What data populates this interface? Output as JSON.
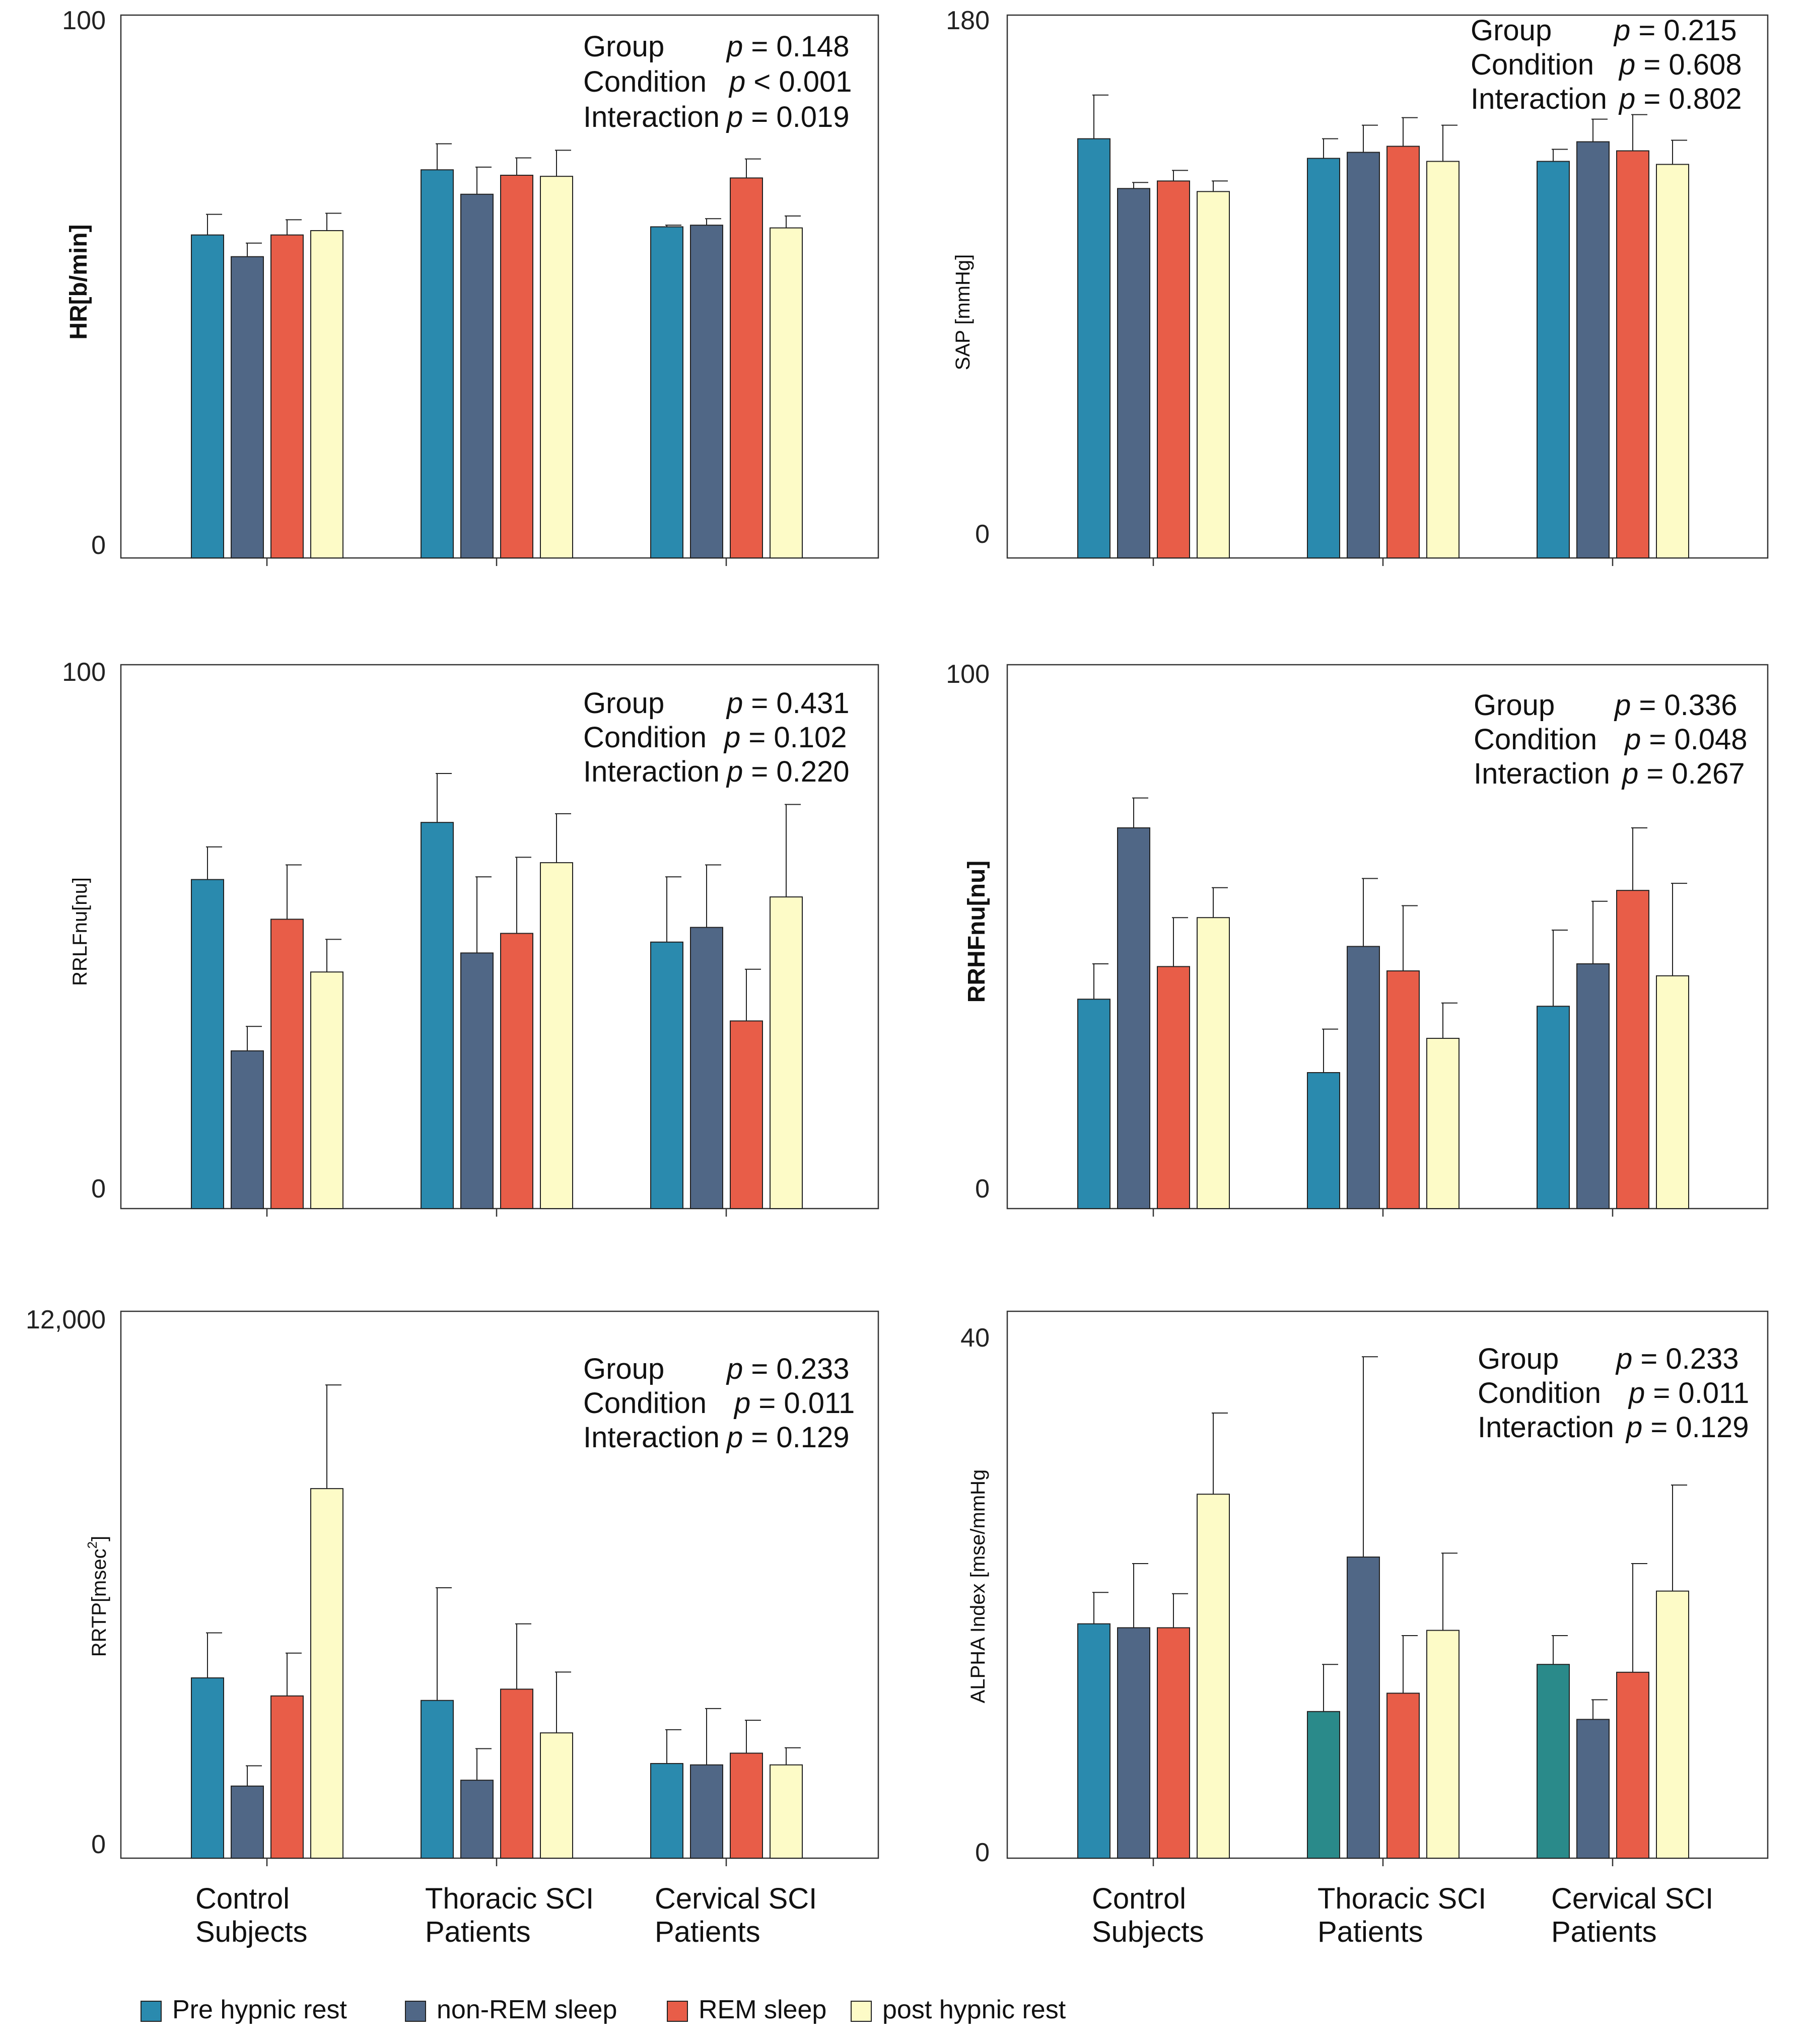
{
  "series_colors": {
    "Pre hypnic rest": "#2a8aae",
    "non-REM sleep": "#506786",
    "REM sleep": "#e85d48",
    "post hypnic rest": "#fdfbc7"
  },
  "alt_teal": "#2a8a8a",
  "legend": [
    "Pre hypnic rest",
    "non-REM sleep",
    "REM sleep",
    "post hypnic rest"
  ],
  "x_categories": [
    [
      "Control",
      "Subjects"
    ],
    [
      "Thoracic SCI",
      "Patients"
    ],
    [
      "Cervical SCI",
      "Patients"
    ]
  ],
  "chart_data": [
    {
      "type": "bar",
      "ylabel": "HR[b/min]",
      "ylabel_bold": true,
      "ylim": [
        0,
        100
      ],
      "tick_labels": [
        "100",
        "0"
      ],
      "stats": [
        [
          "Group",
          "p",
          " = 0.148"
        ],
        [
          "Condition",
          "p",
          " < 0.001"
        ],
        [
          "Interaction",
          "p",
          " = 0.019"
        ]
      ],
      "categories": [
        "Control Subjects",
        "Thoracic SCI Patients",
        "Cervical SCI Patients"
      ],
      "series": [
        {
          "name": "Pre hypnic rest",
          "values": [
            59.5,
            71.5,
            61.0
          ],
          "errors": [
            3.8,
            4.8,
            0.3
          ]
        },
        {
          "name": "non-REM sleep",
          "values": [
            55.5,
            67.0,
            61.3
          ],
          "errors": [
            2.5,
            5.0,
            1.2
          ]
        },
        {
          "name": "REM sleep",
          "values": [
            59.5,
            70.5,
            70.0
          ],
          "errors": [
            2.8,
            3.2,
            3.5
          ]
        },
        {
          "name": "post hypnic rest",
          "values": [
            60.3,
            70.3,
            60.8
          ],
          "errors": [
            3.2,
            4.8,
            2.2
          ]
        }
      ]
    },
    {
      "type": "bar",
      "ylabel": "SAP [mmHg]",
      "ylabel_bold": false,
      "ylim": [
        0,
        180
      ],
      "tick_labels": [
        "180",
        "0"
      ],
      "stats": [
        [
          "Group",
          "p",
          " = 0.215"
        ],
        [
          "Condition",
          "p",
          " = 0.608"
        ],
        [
          "Interaction",
          "p",
          " = 0.802"
        ]
      ],
      "categories": [
        "Control Subjects",
        "Thoracic SCI Patients",
        "Cervical SCI Patients"
      ],
      "series": [
        {
          "name": "Pre hypnic rest",
          "values": [
            139,
            132.5,
            131.5
          ],
          "errors": [
            14.5,
            6.5,
            4.0
          ]
        },
        {
          "name": "non-REM sleep",
          "values": [
            122.5,
            134.5,
            138.0
          ],
          "errors": [
            2.0,
            9.0,
            7.5
          ]
        },
        {
          "name": "REM sleep",
          "values": [
            125,
            136.5,
            135.0
          ],
          "errors": [
            3.5,
            9.5,
            12.0
          ]
        },
        {
          "name": "post hypnic rest",
          "values": [
            121.5,
            131.5,
            130.5
          ],
          "errors": [
            3.5,
            12.0,
            8.0
          ]
        }
      ]
    },
    {
      "type": "bar",
      "ylabel": "RRLFnu[nu]",
      "ylabel_bold": false,
      "ylim": [
        0,
        100
      ],
      "tick_labels": [
        "100",
        "0"
      ],
      "stats": [
        [
          "Group",
          "p",
          " = 0.431"
        ],
        [
          "Condition",
          "p",
          " = 0.102"
        ],
        [
          "Interaction",
          "p",
          " = 0.220"
        ]
      ],
      "categories": [
        "Control Subjects",
        "Thoracic SCI Patients",
        "Cervical SCI Patients"
      ],
      "series": [
        {
          "name": "Pre hypnic rest",
          "values": [
            60.5,
            71.0,
            49.0
          ],
          "errors": [
            6.0,
            9.0,
            12.0
          ]
        },
        {
          "name": "non-REM sleep",
          "values": [
            29.0,
            47.0,
            51.7
          ],
          "errors": [
            4.5,
            14.0,
            11.5
          ]
        },
        {
          "name": "REM sleep",
          "values": [
            53.2,
            50.6,
            34.5
          ],
          "errors": [
            10.0,
            14.0,
            9.5
          ]
        },
        {
          "name": "post hypnic rest",
          "values": [
            43.5,
            63.6,
            57.3
          ],
          "errors": [
            6.0,
            9.0,
            17.0
          ]
        }
      ]
    },
    {
      "type": "bar",
      "ylabel": "RRHFnu[nu]",
      "ylabel_bold": true,
      "ylim": [
        0,
        100
      ],
      "tick_labels": [
        "100",
        "0"
      ],
      "stats": [
        [
          "Group",
          "p",
          " = 0.336"
        ],
        [
          "Condition",
          "p",
          " = 0.048"
        ],
        [
          "Interaction",
          "p",
          " = 0.267"
        ]
      ],
      "categories": [
        "Control Subjects",
        "Thoracic SCI Patients",
        "Cervical SCI Patients"
      ],
      "series": [
        {
          "name": "Pre hypnic rest",
          "values": [
            38.5,
            25.0,
            37.2
          ],
          "errors": [
            6.5,
            8.0,
            14.0
          ]
        },
        {
          "name": "non-REM sleep",
          "values": [
            70.0,
            48.2,
            45.0
          ],
          "errors": [
            5.5,
            12.5,
            11.5
          ]
        },
        {
          "name": "REM sleep",
          "values": [
            44.5,
            43.7,
            58.5
          ],
          "errors": [
            9.0,
            12.0,
            11.5
          ]
        },
        {
          "name": "post hypnic rest",
          "values": [
            53.5,
            31.3,
            42.8
          ],
          "errors": [
            5.5,
            6.5,
            17.0
          ]
        }
      ]
    },
    {
      "type": "bar",
      "ylabel": "RRTP[msec",
      "ylabel_sup": "2",
      "ylabel_end": "]",
      "ylabel_bold": false,
      "ylim": [
        0,
        12000
      ],
      "tick_labels": [
        "12,000",
        "0"
      ],
      "stats": [
        [
          "Group",
          "p",
          " = 0.233"
        ],
        [
          "Condition",
          "p",
          " = 0.011"
        ],
        [
          "Interaction",
          "p",
          " = 0.129"
        ]
      ],
      "categories": [
        "Control Subjects",
        "Thoracic SCI Patients",
        "Cervical SCI Patients"
      ],
      "series": [
        {
          "name": "Pre hypnic rest",
          "values": [
            4000,
            3500,
            2100
          ],
          "errors": [
            1000,
            2500,
            750
          ]
        },
        {
          "name": "non-REM sleep",
          "values": [
            1600,
            1730,
            2070
          ],
          "errors": [
            450,
            700,
            1250
          ]
        },
        {
          "name": "REM sleep",
          "values": [
            3600,
            3750,
            2330
          ],
          "errors": [
            950,
            1450,
            730
          ]
        },
        {
          "name": "post hypnic rest",
          "values": [
            8200,
            2780,
            2070
          ],
          "errors": [
            2300,
            1350,
            380
          ]
        }
      ]
    },
    {
      "type": "bar",
      "ylabel": "ALPHA Index [mse/mmHg",
      "ylabel_bold": false,
      "ylim": [
        0,
        40
      ],
      "tick_labels": [
        "40",
        "0"
      ],
      "stats": [
        [
          "Group",
          "p",
          " = 0.233"
        ],
        [
          "Condition",
          "p",
          " = 0.011"
        ],
        [
          "Interaction",
          "p",
          " = 0.129"
        ]
      ],
      "categories": [
        "Control Subjects",
        "Thoracic SCI Patients",
        "Cervical SCI Patients"
      ],
      "series": [
        {
          "name": "Pre hypnic rest",
          "values": [
            17.9,
            11.2,
            14.8
          ],
          "errors": [
            2.4,
            3.6,
            2.2
          ]
        },
        {
          "name": "non-REM sleep",
          "values": [
            17.6,
            23.0,
            10.6
          ],
          "errors": [
            4.9,
            15.3,
            1.5
          ]
        },
        {
          "name": "REM sleep",
          "values": [
            17.6,
            12.6,
            14.2
          ],
          "errors": [
            2.6,
            4.4,
            8.3
          ]
        },
        {
          "name": "post hypnic rest",
          "values": [
            27.8,
            17.4,
            20.4
          ],
          "errors": [
            6.2,
            5.9,
            8.1
          ]
        }
      ]
    }
  ]
}
